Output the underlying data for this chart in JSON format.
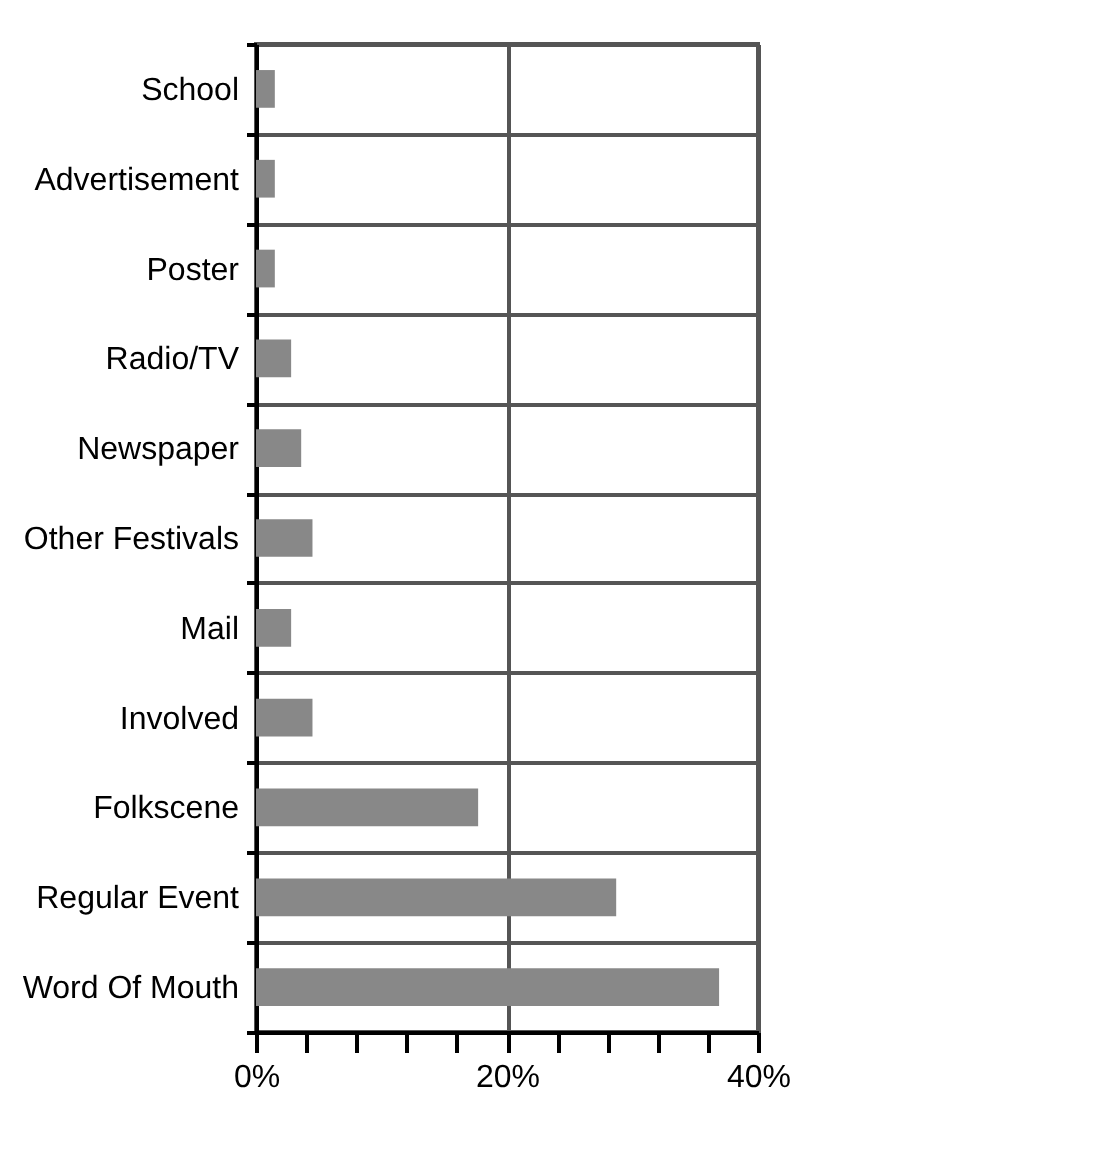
{
  "chart_data": {
    "type": "bar",
    "orientation": "horizontal",
    "categories": [
      "School",
      "Advertisement",
      "Poster",
      "Radio/TV",
      "Newspaper",
      "Other Festivals",
      "Mail",
      "Involved",
      "Folkscene",
      "Regular Event",
      "Word Of Mouth"
    ],
    "values": [
      1.5,
      1.5,
      1.5,
      2.8,
      3.6,
      4.5,
      2.8,
      4.5,
      17.7,
      28.7,
      36.9
    ],
    "color": "#888888",
    "xlim": [
      0,
      40
    ],
    "xticks": [
      {
        "value": 0,
        "label": "0%"
      },
      {
        "value": 4,
        "label": null
      },
      {
        "value": 8,
        "label": null
      },
      {
        "value": 12,
        "label": null
      },
      {
        "value": 16,
        "label": null
      },
      {
        "value": 20,
        "label": "20%"
      },
      {
        "value": 24,
        "label": null
      },
      {
        "value": 28,
        "label": null
      },
      {
        "value": 32,
        "label": null
      },
      {
        "value": 36,
        "label": null
      },
      {
        "value": 40,
        "label": "40%"
      }
    ],
    "grid": true
  }
}
